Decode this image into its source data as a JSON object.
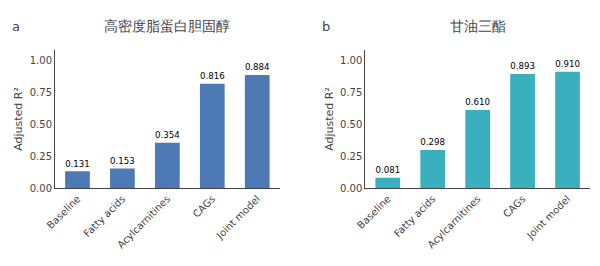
{
  "chart_data": [
    {
      "type": "bar",
      "title": "高密度脂蛋白胆固醇",
      "annotations": [
        {
          "text": "a"
        }
      ],
      "categories": [
        "Baseline",
        "Fatty acids",
        "Acylcarnitines",
        "CAGs",
        "Joint model"
      ],
      "values": [
        0.131,
        0.153,
        0.354,
        0.816,
        0.884
      ],
      "value_labels": [
        "0.131",
        "0.153",
        "0.354",
        "0.816",
        "0.884"
      ],
      "data_labels": true,
      "color": "#4d7ab5",
      "ylabel": "Adjusted R²",
      "ylim": [
        0,
        1.08
      ],
      "yticks": [
        {
          "value": 0,
          "label": "0.00"
        },
        {
          "value": 0.25,
          "label": "0.25"
        },
        {
          "value": 0.5,
          "label": "0.50"
        },
        {
          "value": 0.75,
          "label": "0.75"
        },
        {
          "value": 1,
          "label": "1.00"
        }
      ],
      "grid": false
    },
    {
      "type": "bar",
      "title": "甘油三酯",
      "annotations": [
        {
          "text": "b"
        }
      ],
      "categories": [
        "Baseline",
        "Fatty acids",
        "Acylcarnitines",
        "CAGs",
        "Joint model"
      ],
      "values": [
        0.081,
        0.298,
        0.61,
        0.893,
        0.91
      ],
      "value_labels": [
        "0.081",
        "0.298",
        "0.610",
        "0.893",
        "0.910"
      ],
      "data_labels": true,
      "color": "#3aafbe",
      "ylabel": "Adjusted R²",
      "ylim": [
        0,
        1.08
      ],
      "yticks": [
        {
          "value": 0,
          "label": "0.00"
        },
        {
          "value": 0.25,
          "label": "0.25"
        },
        {
          "value": 0.5,
          "label": "0.50"
        },
        {
          "value": 0.75,
          "label": "0.75"
        },
        {
          "value": 1,
          "label": "1.00"
        }
      ],
      "grid": false
    }
  ]
}
